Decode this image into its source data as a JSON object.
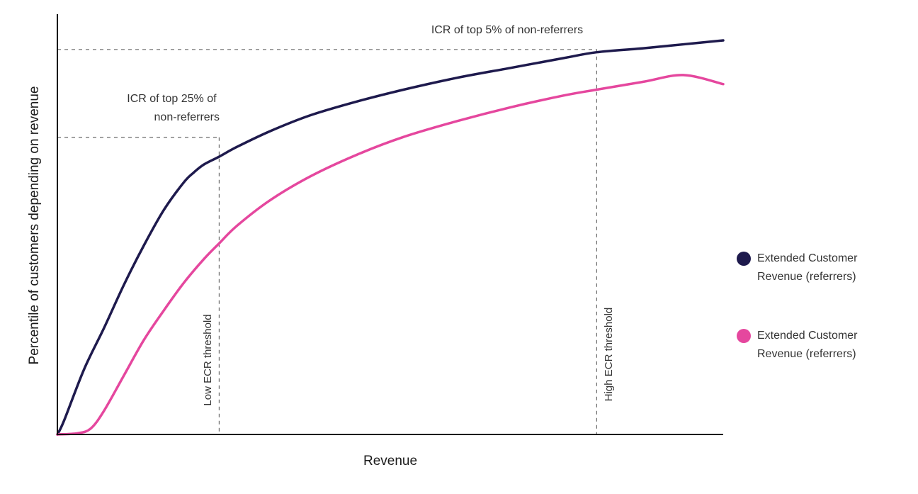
{
  "chart_data": {
    "type": "line",
    "title": "",
    "xlabel": "Revenue",
    "ylabel": "Percentile of customers depending on revenue",
    "xlim": [
      0,
      100
    ],
    "ylim": [
      0,
      100
    ],
    "grid": false,
    "legend_position": "right",
    "series": [
      {
        "name": "Extended Customer Revenue (referrers)",
        "color": "#1e1a4d",
        "x": [
          0,
          1,
          4,
          7,
          10,
          13,
          16,
          19,
          20.5,
          22,
          24.3,
          27,
          32,
          38,
          45,
          52,
          60,
          68,
          76,
          81,
          88,
          94,
          100
        ],
        "y": [
          0,
          3.5,
          16.5,
          27,
          38,
          48,
          57,
          64,
          66.5,
          68.5,
          70.5,
          73,
          77,
          81,
          84.5,
          87.5,
          90.5,
          93,
          95.5,
          97,
          98,
          99,
          100
        ]
      },
      {
        "name": "Extended Customer Revenue (referrers)",
        "color": "#e5479e",
        "x": [
          0,
          3,
          5,
          7,
          10,
          13,
          16,
          19,
          22,
          24.3,
          27,
          32,
          38,
          45,
          52,
          60,
          68,
          76,
          81,
          88,
          94,
          100
        ],
        "y": [
          0,
          0.3,
          1.5,
          6,
          15,
          24,
          31.5,
          38.5,
          44.5,
          48.5,
          53,
          59.5,
          65.5,
          71,
          75.5,
          79.5,
          83,
          86,
          87.5,
          89.5,
          91.2,
          88.9
        ]
      }
    ],
    "annotations": {
      "low_threshold": {
        "label": "Low ECR threshold",
        "x": 24.3,
        "y": 75.4
      },
      "high_threshold": {
        "label": "High ECR threshold",
        "x": 81,
        "y": 97.7
      },
      "icr_top25": {
        "lines": [
          "ICR of top 25% of",
          "non-referrers"
        ]
      },
      "icr_top5": {
        "lines": [
          "ICR of top 5% of non-referrers"
        ]
      }
    }
  }
}
